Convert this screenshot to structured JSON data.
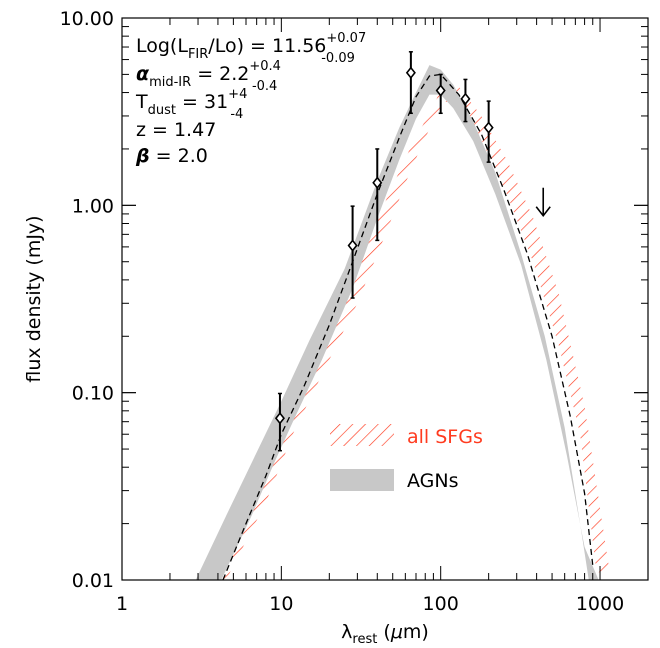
{
  "chart_data": {
    "type": "scatter",
    "xscale": "log",
    "yscale": "log",
    "xlim": [
      1,
      2000
    ],
    "ylim": [
      0.01,
      10
    ],
    "xticks": [
      {
        "value": 1,
        "label": "1"
      },
      {
        "value": 10,
        "label": "10"
      },
      {
        "value": 100,
        "label": "100"
      },
      {
        "value": 1000,
        "label": "1000"
      }
    ],
    "yticks": [
      {
        "value": 0.01,
        "label": "0.01"
      },
      {
        "value": 0.1,
        "label": "0.10"
      },
      {
        "value": 1,
        "label": "1.00"
      },
      {
        "value": 10,
        "label": "10.00"
      }
    ],
    "xlabel": {
      "main": "λ",
      "sub": "rest",
      "unit_open": " (",
      "unit_mu": "μ",
      "unit_close": "m)"
    },
    "ylabel": "flux density (mJy)",
    "annotations": {
      "lfir": {
        "prefix": "Log(L",
        "sub": "FIR",
        "middle": "/Lo) = 11.56",
        "sup": "+0.07",
        "subval": "-0.09"
      },
      "alpha": {
        "symbol": "α",
        "sub": "mid-IR",
        "middle": " = 2.2",
        "sup": "+0.4",
        "subval": "-0.4"
      },
      "tdust": {
        "prefix": "T",
        "sub": "dust",
        "middle": " = 31",
        "sup": "+4",
        "subval": "-4"
      },
      "z": "z = 1.47",
      "beta": {
        "symbol": "β",
        "rest": " = 2.0"
      }
    },
    "legend": {
      "placement": "lower-center",
      "entries": [
        {
          "label": "all SFGs",
          "style": "red-hatched"
        },
        {
          "label": "AGNs",
          "style": "gray-band"
        }
      ]
    },
    "colors": {
      "sfg": "#ff3b1f",
      "agn": "#c8c8c8",
      "points": "#000000",
      "model": "#000000"
    },
    "points": [
      {
        "x": 9.8,
        "y": 0.073,
        "yerr_low": 0.049,
        "yerr_high": 0.099
      },
      {
        "x": 28,
        "y": 0.61,
        "yerr_low": 0.32,
        "yerr_high": 0.99
      },
      {
        "x": 40,
        "y": 1.32,
        "yerr_low": 0.65,
        "yerr_high": 2.0
      },
      {
        "x": 65,
        "y": 5.1,
        "yerr_low": 3.1,
        "yerr_high": 6.6
      },
      {
        "x": 100,
        "y": 4.1,
        "yerr_low": 3.1,
        "yerr_high": 5.0
      },
      {
        "x": 143,
        "y": 3.7,
        "yerr_low": 2.8,
        "yerr_high": 4.7
      },
      {
        "x": 200,
        "y": 2.6,
        "yerr_low": 1.7,
        "yerr_high": 3.6
      }
    ],
    "upper_limits": [
      {
        "x": 440,
        "y": 0.88
      }
    ],
    "model_curve": [
      [
        4.3,
        0.01
      ],
      [
        6,
        0.02
      ],
      [
        8,
        0.036
      ],
      [
        10,
        0.06
      ],
      [
        14,
        0.11
      ],
      [
        20,
        0.23
      ],
      [
        28,
        0.5
      ],
      [
        40,
        1.15
      ],
      [
        55,
        2.3
      ],
      [
        70,
        3.8
      ],
      [
        85,
        4.9
      ],
      [
        100,
        5.0
      ],
      [
        130,
        3.9
      ],
      [
        180,
        2.4
      ],
      [
        250,
        1.2
      ],
      [
        350,
        0.55
      ],
      [
        500,
        0.2
      ],
      [
        650,
        0.075
      ],
      [
        800,
        0.029
      ],
      [
        900,
        0.012
      ]
    ],
    "sfg_band": {
      "upper": [
        [
          3.0,
          0.01
        ],
        [
          5,
          0.02
        ],
        [
          8,
          0.046
        ],
        [
          12,
          0.1
        ],
        [
          20,
          0.23
        ],
        [
          30,
          0.46
        ],
        [
          45,
          1.05
        ],
        [
          65,
          2.05
        ],
        [
          90,
          3.4
        ],
        [
          105,
          4.5
        ],
        [
          130,
          4.3
        ],
        [
          180,
          3.0
        ],
        [
          260,
          1.75
        ],
        [
          380,
          0.86
        ],
        [
          550,
          0.34
        ],
        [
          800,
          0.085
        ],
        [
          1150,
          0.011
        ]
      ],
      "lower": [
        [
          4.5,
          0.01
        ],
        [
          8,
          0.026
        ],
        [
          12,
          0.062
        ],
        [
          20,
          0.15
        ],
        [
          30,
          0.3
        ],
        [
          45,
          0.7
        ],
        [
          65,
          1.55
        ],
        [
          90,
          2.85
        ],
        [
          105,
          3.6
        ],
        [
          130,
          3.4
        ],
        [
          180,
          2.25
        ],
        [
          260,
          1.15
        ],
        [
          380,
          0.5
        ],
        [
          550,
          0.18
        ],
        [
          750,
          0.06
        ],
        [
          950,
          0.011
        ]
      ]
    },
    "agn_band": {
      "upper": [
        [
          2.9,
          0.01
        ],
        [
          4.5,
          0.022
        ],
        [
          7,
          0.048
        ],
        [
          10,
          0.09
        ],
        [
          15,
          0.19
        ],
        [
          25,
          0.46
        ],
        [
          40,
          1.35
        ],
        [
          55,
          2.6
        ],
        [
          70,
          4.0
        ],
        [
          85,
          5.6
        ],
        [
          100,
          5.3
        ],
        [
          120,
          4.4
        ],
        [
          160,
          2.8
        ],
        [
          220,
          1.5
        ],
        [
          320,
          0.55
        ],
        [
          450,
          0.2
        ],
        [
          600,
          0.065
        ],
        [
          750,
          0.02
        ],
        [
          850,
          0.01
        ]
      ],
      "lower": [
        [
          4.2,
          0.01
        ],
        [
          6.5,
          0.022
        ],
        [
          9,
          0.042
        ],
        [
          12,
          0.072
        ],
        [
          18,
          0.15
        ],
        [
          28,
          0.36
        ],
        [
          40,
          0.85
        ],
        [
          55,
          1.75
        ],
        [
          70,
          2.9
        ],
        [
          85,
          3.9
        ],
        [
          100,
          3.9
        ],
        [
          120,
          3.3
        ],
        [
          160,
          2.2
        ],
        [
          220,
          1.15
        ],
        [
          320,
          0.48
        ],
        [
          460,
          0.15
        ],
        [
          620,
          0.046
        ],
        [
          800,
          0.015
        ],
        [
          980,
          0.01
        ]
      ]
    }
  }
}
